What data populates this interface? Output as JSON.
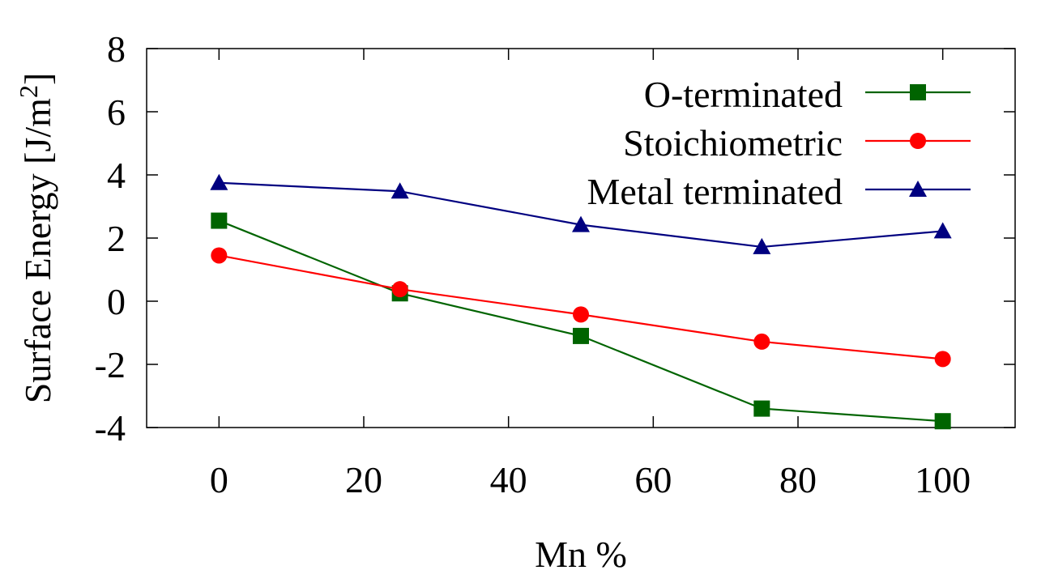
{
  "chart_data": {
    "type": "line",
    "title": "",
    "xlabel": "Mn %",
    "ylabel": "Surface Energy [J/m",
    "ylabel_superscript": "2",
    "ylabel_suffix": "]",
    "xlim": [
      -10,
      110
    ],
    "ylim": [
      -4,
      8
    ],
    "xticks": [
      0,
      20,
      40,
      60,
      80,
      100
    ],
    "yticks": [
      -4,
      -2,
      0,
      2,
      4,
      6,
      8
    ],
    "grid": false,
    "legend_position": "top-right",
    "x": [
      0,
      25,
      50,
      75,
      100
    ],
    "series": [
      {
        "name": "O-terminated",
        "color": "#006400",
        "marker": "square",
        "values": [
          2.55,
          0.25,
          -1.1,
          -3.4,
          -3.8
        ]
      },
      {
        "name": "Stoichiometric",
        "color": "#ff0000",
        "marker": "circle",
        "values": [
          1.45,
          0.38,
          -0.42,
          -1.28,
          -1.83
        ]
      },
      {
        "name": "Metal terminated",
        "color": "#000080",
        "marker": "triangle",
        "values": [
          3.75,
          3.48,
          2.42,
          1.72,
          2.22
        ]
      }
    ]
  }
}
